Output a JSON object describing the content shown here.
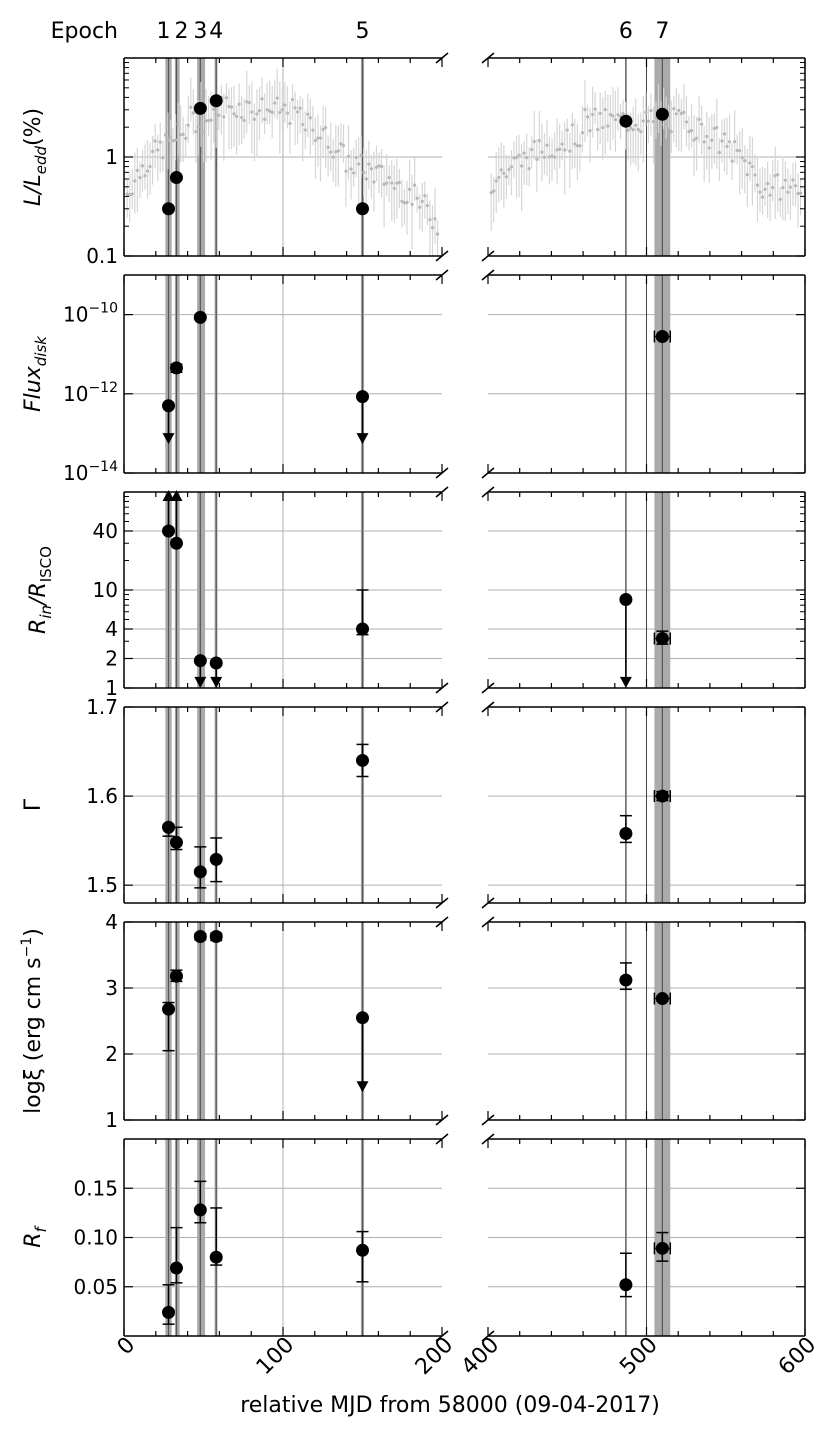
{
  "chart_data": {
    "type": "scatter",
    "xlabel": "relative MJD from 58000 (09-04-2017)",
    "x_segments": [
      {
        "xlim": [
          0,
          200
        ],
        "ticks": [
          "0",
          "100",
          "200"
        ]
      },
      {
        "xlim": [
          400,
          600
        ],
        "ticks": [
          "400",
          "500",
          "600"
        ]
      }
    ],
    "epoch_title": "Epoch",
    "epochs": [
      {
        "label": "1",
        "x": 28,
        "shade": [
          26,
          30
        ]
      },
      {
        "label": "2",
        "x": 33,
        "shade": [
          32,
          35
        ]
      },
      {
        "label": "3",
        "x": 48,
        "shade": [
          46,
          51
        ]
      },
      {
        "label": "4",
        "x": 58,
        "shade": [
          57,
          58.8
        ]
      },
      {
        "label": "5",
        "x": 150,
        "shade": [
          149,
          151
        ]
      },
      {
        "label": "6",
        "x": 487,
        "shade": [
          486.5,
          487.5
        ]
      },
      {
        "label": "7",
        "x": 510,
        "shade": [
          505,
          515
        ]
      }
    ],
    "extra_vlines": [
      500
    ],
    "panels": [
      {
        "ylabel_main": "L/L",
        "ylabel_sub": "edd",
        "ylabel_tail": "(%)",
        "scale": "log",
        "ylim": [
          0.1,
          10
        ],
        "yticks": [
          {
            "v": 0.1,
            "t": "0.1"
          },
          {
            "v": 1,
            "t": "1"
          }
        ],
        "grid": [
          1
        ],
        "background_trend": true,
        "points": [
          {
            "x": 28,
            "y": 0.3
          },
          {
            "x": 33,
            "y": 0.62
          },
          {
            "x": 48,
            "y": 3.1
          },
          {
            "x": 58,
            "y": 3.7
          },
          {
            "x": 150,
            "y": 0.3
          },
          {
            "x": 487,
            "y": 2.3
          },
          {
            "x": 510,
            "y": 2.7
          }
        ]
      },
      {
        "ylabel_main": "Flux",
        "ylabel_sub": "disk",
        "scale": "log",
        "ylim": [
          1e-14,
          1e-09
        ],
        "yticks": [
          {
            "v": 1e-14,
            "t": "10",
            "e": "−14"
          },
          {
            "v": 1e-12,
            "t": "10",
            "e": "−12"
          },
          {
            "v": 1e-10,
            "t": "10",
            "e": "−10"
          }
        ],
        "grid": [
          1e-14,
          1e-12,
          1e-10
        ],
        "points": [
          {
            "x": 28,
            "y": 5e-13,
            "upper_limit": true,
            "arrow_to": 6e-14
          },
          {
            "x": 33,
            "y": 4.5e-12,
            "yerr": [
              3.5e-12,
              5.6e-12
            ],
            "xerr": 1.5
          },
          {
            "x": 48,
            "y": 8.5e-11,
            "yerr": [
              7.5e-11,
              9.5e-11
            ]
          },
          {
            "x": 150,
            "y": 8.5e-13,
            "upper_limit": true,
            "arrow_to": 6e-14
          },
          {
            "x": 510,
            "y": 2.8e-11,
            "yerr": [
              2.4e-11,
              3.2e-11
            ],
            "xerr": 5
          }
        ]
      },
      {
        "ylabel_main": "R",
        "ylabel_sub": "in",
        "ylabel_mid": "/R",
        "ylabel_sub2": "ISCO",
        "scale": "log",
        "ylim": [
          1,
          100
        ],
        "yticks": [
          {
            "v": 1,
            "t": "1"
          },
          {
            "v": 2,
            "t": "2"
          },
          {
            "v": 4,
            "t": "4"
          },
          {
            "v": 10,
            "t": "10"
          },
          {
            "v": 40,
            "t": "40"
          }
        ],
        "grid": [
          2,
          4,
          10,
          40
        ],
        "points": [
          {
            "x": 28,
            "y": 40,
            "lower_limit": true,
            "arrow_to": 100
          },
          {
            "x": 33,
            "y": 30,
            "lower_limit": true,
            "arrow_to": 100
          },
          {
            "x": 48,
            "y": 1.9,
            "upper_limit": true,
            "arrow_to": 1.05
          },
          {
            "x": 58,
            "y": 1.8,
            "upper_limit": true,
            "arrow_to": 1.05
          },
          {
            "x": 150,
            "y": 4,
            "yerr": [
              3.5,
              10
            ]
          },
          {
            "x": 487,
            "y": 8,
            "upper_limit": true,
            "arrow_to": 1.05
          },
          {
            "x": 510,
            "y": 3.2,
            "yerr": [
              2.8,
              3.8
            ],
            "xerr": 5
          }
        ]
      },
      {
        "ylabel_main": "Γ",
        "scale": "linear",
        "ylim": [
          1.48,
          1.7
        ],
        "yticks": [
          {
            "v": 1.5,
            "t": "1.5"
          },
          {
            "v": 1.6,
            "t": "1.6"
          },
          {
            "v": 1.7,
            "t": "1.7"
          }
        ],
        "grid": [
          1.5,
          1.6
        ],
        "points": [
          {
            "x": 28,
            "y": 1.565,
            "yerr": [
              1.555,
              1.568
            ]
          },
          {
            "x": 33,
            "y": 1.548,
            "yerr": [
              1.54,
              1.565
            ]
          },
          {
            "x": 48,
            "y": 1.515,
            "yerr": [
              1.497,
              1.543
            ]
          },
          {
            "x": 58,
            "y": 1.529,
            "yerr": [
              1.504,
              1.553
            ]
          },
          {
            "x": 150,
            "y": 1.64,
            "yerr": [
              1.622,
              1.658
            ]
          },
          {
            "x": 487,
            "y": 1.558,
            "yerr": [
              1.548,
              1.578
            ]
          },
          {
            "x": 510,
            "y": 1.6,
            "yerr": [
              1.595,
              1.605
            ],
            "xerr": 5
          }
        ]
      },
      {
        "ylabel_main": "logξ (erg cm s",
        "ylabel_sup": "−1",
        "ylabel_tail": ")",
        "scale": "linear",
        "ylim": [
          1,
          4
        ],
        "yticks": [
          {
            "v": 1,
            "t": "1"
          },
          {
            "v": 2,
            "t": "2"
          },
          {
            "v": 3,
            "t": "3"
          },
          {
            "v": 4,
            "t": "4"
          }
        ],
        "grid": [
          2,
          3
        ],
        "points": [
          {
            "x": 28,
            "y": 2.68,
            "yerr": [
              2.05,
              2.78
            ]
          },
          {
            "x": 33,
            "y": 3.18,
            "yerr": [
              3.1,
              3.27
            ]
          },
          {
            "x": 48,
            "y": 3.78,
            "yerr": [
              3.73,
              3.82
            ]
          },
          {
            "x": 58,
            "y": 3.78,
            "yerr": [
              3.72,
              3.83
            ]
          },
          {
            "x": 150,
            "y": 2.55,
            "upper_limit": true,
            "arrow_to": 1.45
          },
          {
            "x": 487,
            "y": 3.12,
            "yerr": [
              2.98,
              3.38
            ]
          },
          {
            "x": 510,
            "y": 2.84,
            "yerr": [
              2.8,
              2.88
            ],
            "xerr": 5
          }
        ]
      },
      {
        "ylabel_main": "R",
        "ylabel_sub": "f",
        "scale": "linear",
        "ylim": [
          0,
          0.2
        ],
        "yticks": [
          {
            "v": 0.05,
            "t": "0.05"
          },
          {
            "v": 0.1,
            "t": "0.10"
          },
          {
            "v": 0.15,
            "t": "0.15"
          }
        ],
        "grid": [
          0.05,
          0.1,
          0.15
        ],
        "points": [
          {
            "x": 28,
            "y": 0.024,
            "yerr": [
              0.012,
              0.052
            ]
          },
          {
            "x": 33,
            "y": 0.069,
            "yerr": [
              0.054,
              0.11
            ]
          },
          {
            "x": 48,
            "y": 0.128,
            "yerr": [
              0.115,
              0.157
            ]
          },
          {
            "x": 58,
            "y": 0.08,
            "yerr": [
              0.072,
              0.13
            ]
          },
          {
            "x": 150,
            "y": 0.087,
            "yerr": [
              0.055,
              0.106
            ]
          },
          {
            "x": 487,
            "y": 0.052,
            "yerr": [
              0.04,
              0.084
            ]
          },
          {
            "x": 510,
            "y": 0.089,
            "yerr": [
              0.076,
              0.105
            ],
            "xerr": 5
          }
        ]
      }
    ]
  }
}
